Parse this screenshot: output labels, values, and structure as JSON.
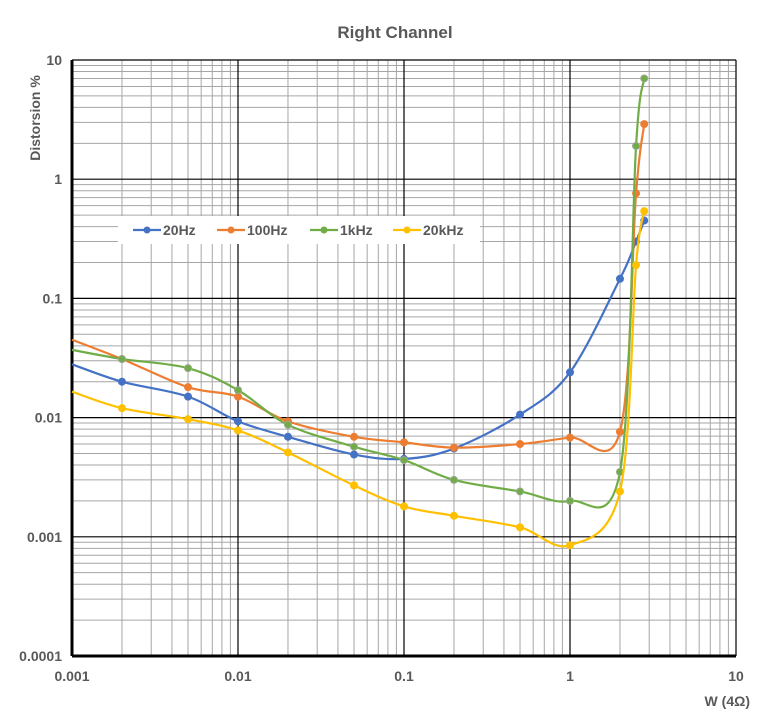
{
  "chart_data": {
    "type": "line",
    "title": "Right Channel",
    "xlabel": "W (4Ω)",
    "ylabel": "Distorsion %",
    "xscale": "log",
    "yscale": "log",
    "xlim": [
      0.001,
      10
    ],
    "ylim": [
      0.0001,
      10
    ],
    "grid": true,
    "legend_position": "upper-left",
    "x_tick_labels": [
      "0.001",
      "0.01",
      "0.1",
      "1",
      "10"
    ],
    "y_tick_labels": [
      "0.0001",
      "0.001",
      "0.01",
      "0.1",
      "1",
      "10"
    ],
    "x": [
      0.001,
      0.002,
      0.005,
      0.01,
      0.02,
      0.05,
      0.1,
      0.2,
      0.5,
      1,
      2,
      2.5,
      2.8
    ],
    "series": [
      {
        "name": "20Hz",
        "color": "#4472C4",
        "values": [
          0.028,
          0.02,
          0.015,
          0.0093,
          0.0069,
          0.0049,
          0.0045,
          0.0055,
          0.0106,
          0.024,
          0.146,
          0.3,
          0.45
        ]
      },
      {
        "name": "100Hz",
        "color": "#ED7D31",
        "values": [
          0.045,
          0.031,
          0.018,
          0.015,
          0.0093,
          0.0069,
          0.0062,
          0.0056,
          0.006,
          0.0068,
          0.0076,
          0.76,
          2.9
        ]
      },
      {
        "name": "1kHz",
        "color": "#70AD47",
        "values": [
          0.037,
          0.031,
          0.026,
          0.017,
          0.0087,
          0.0057,
          0.0044,
          0.003,
          0.0024,
          0.002,
          0.0035,
          1.9,
          7.0
        ]
      },
      {
        "name": "20kHz",
        "color": "#FFC000",
        "values": [
          0.0165,
          0.012,
          0.0097,
          0.0078,
          0.0051,
          0.0027,
          0.0018,
          0.0015,
          0.0012,
          0.00085,
          0.0024,
          0.19,
          0.54
        ]
      }
    ]
  }
}
